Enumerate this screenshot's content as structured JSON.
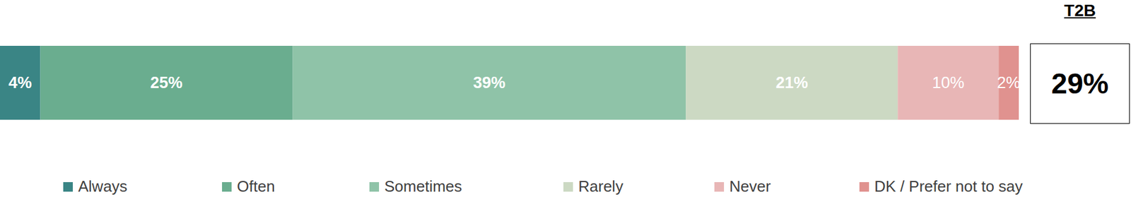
{
  "chart_data": {
    "type": "bar",
    "orientation": "horizontal",
    "stacked": true,
    "data_labels": true,
    "tick_labels": false,
    "legend": "bottom",
    "categories": [
      null
    ],
    "xlim": [
      0,
      101
    ],
    "series": [
      {
        "name": "Always",
        "color": "#3a8585",
        "values": [
          4
        ],
        "value_labels": [
          "4%"
        ]
      },
      {
        "name": "Often",
        "color": "#6aad8f",
        "values": [
          25
        ],
        "value_labels": [
          "25%"
        ]
      },
      {
        "name": "Sometimes",
        "color": "#8fc3a8",
        "values": [
          39
        ],
        "value_labels": [
          "39%"
        ]
      },
      {
        "name": "Rarely",
        "color": "#ccd9c3",
        "values": [
          21
        ],
        "value_labels": [
          "21%"
        ]
      },
      {
        "name": "Never",
        "color": "#e8b6b6",
        "values": [
          10
        ],
        "value_labels": [
          "10%"
        ]
      },
      {
        "name": "DK / Prefer not to say",
        "color": "#e0928f",
        "values": [
          2
        ],
        "value_labels": [
          "2%"
        ]
      }
    ],
    "annotation": {
      "title": "T2B",
      "value": 29,
      "value_label": "29%"
    }
  }
}
